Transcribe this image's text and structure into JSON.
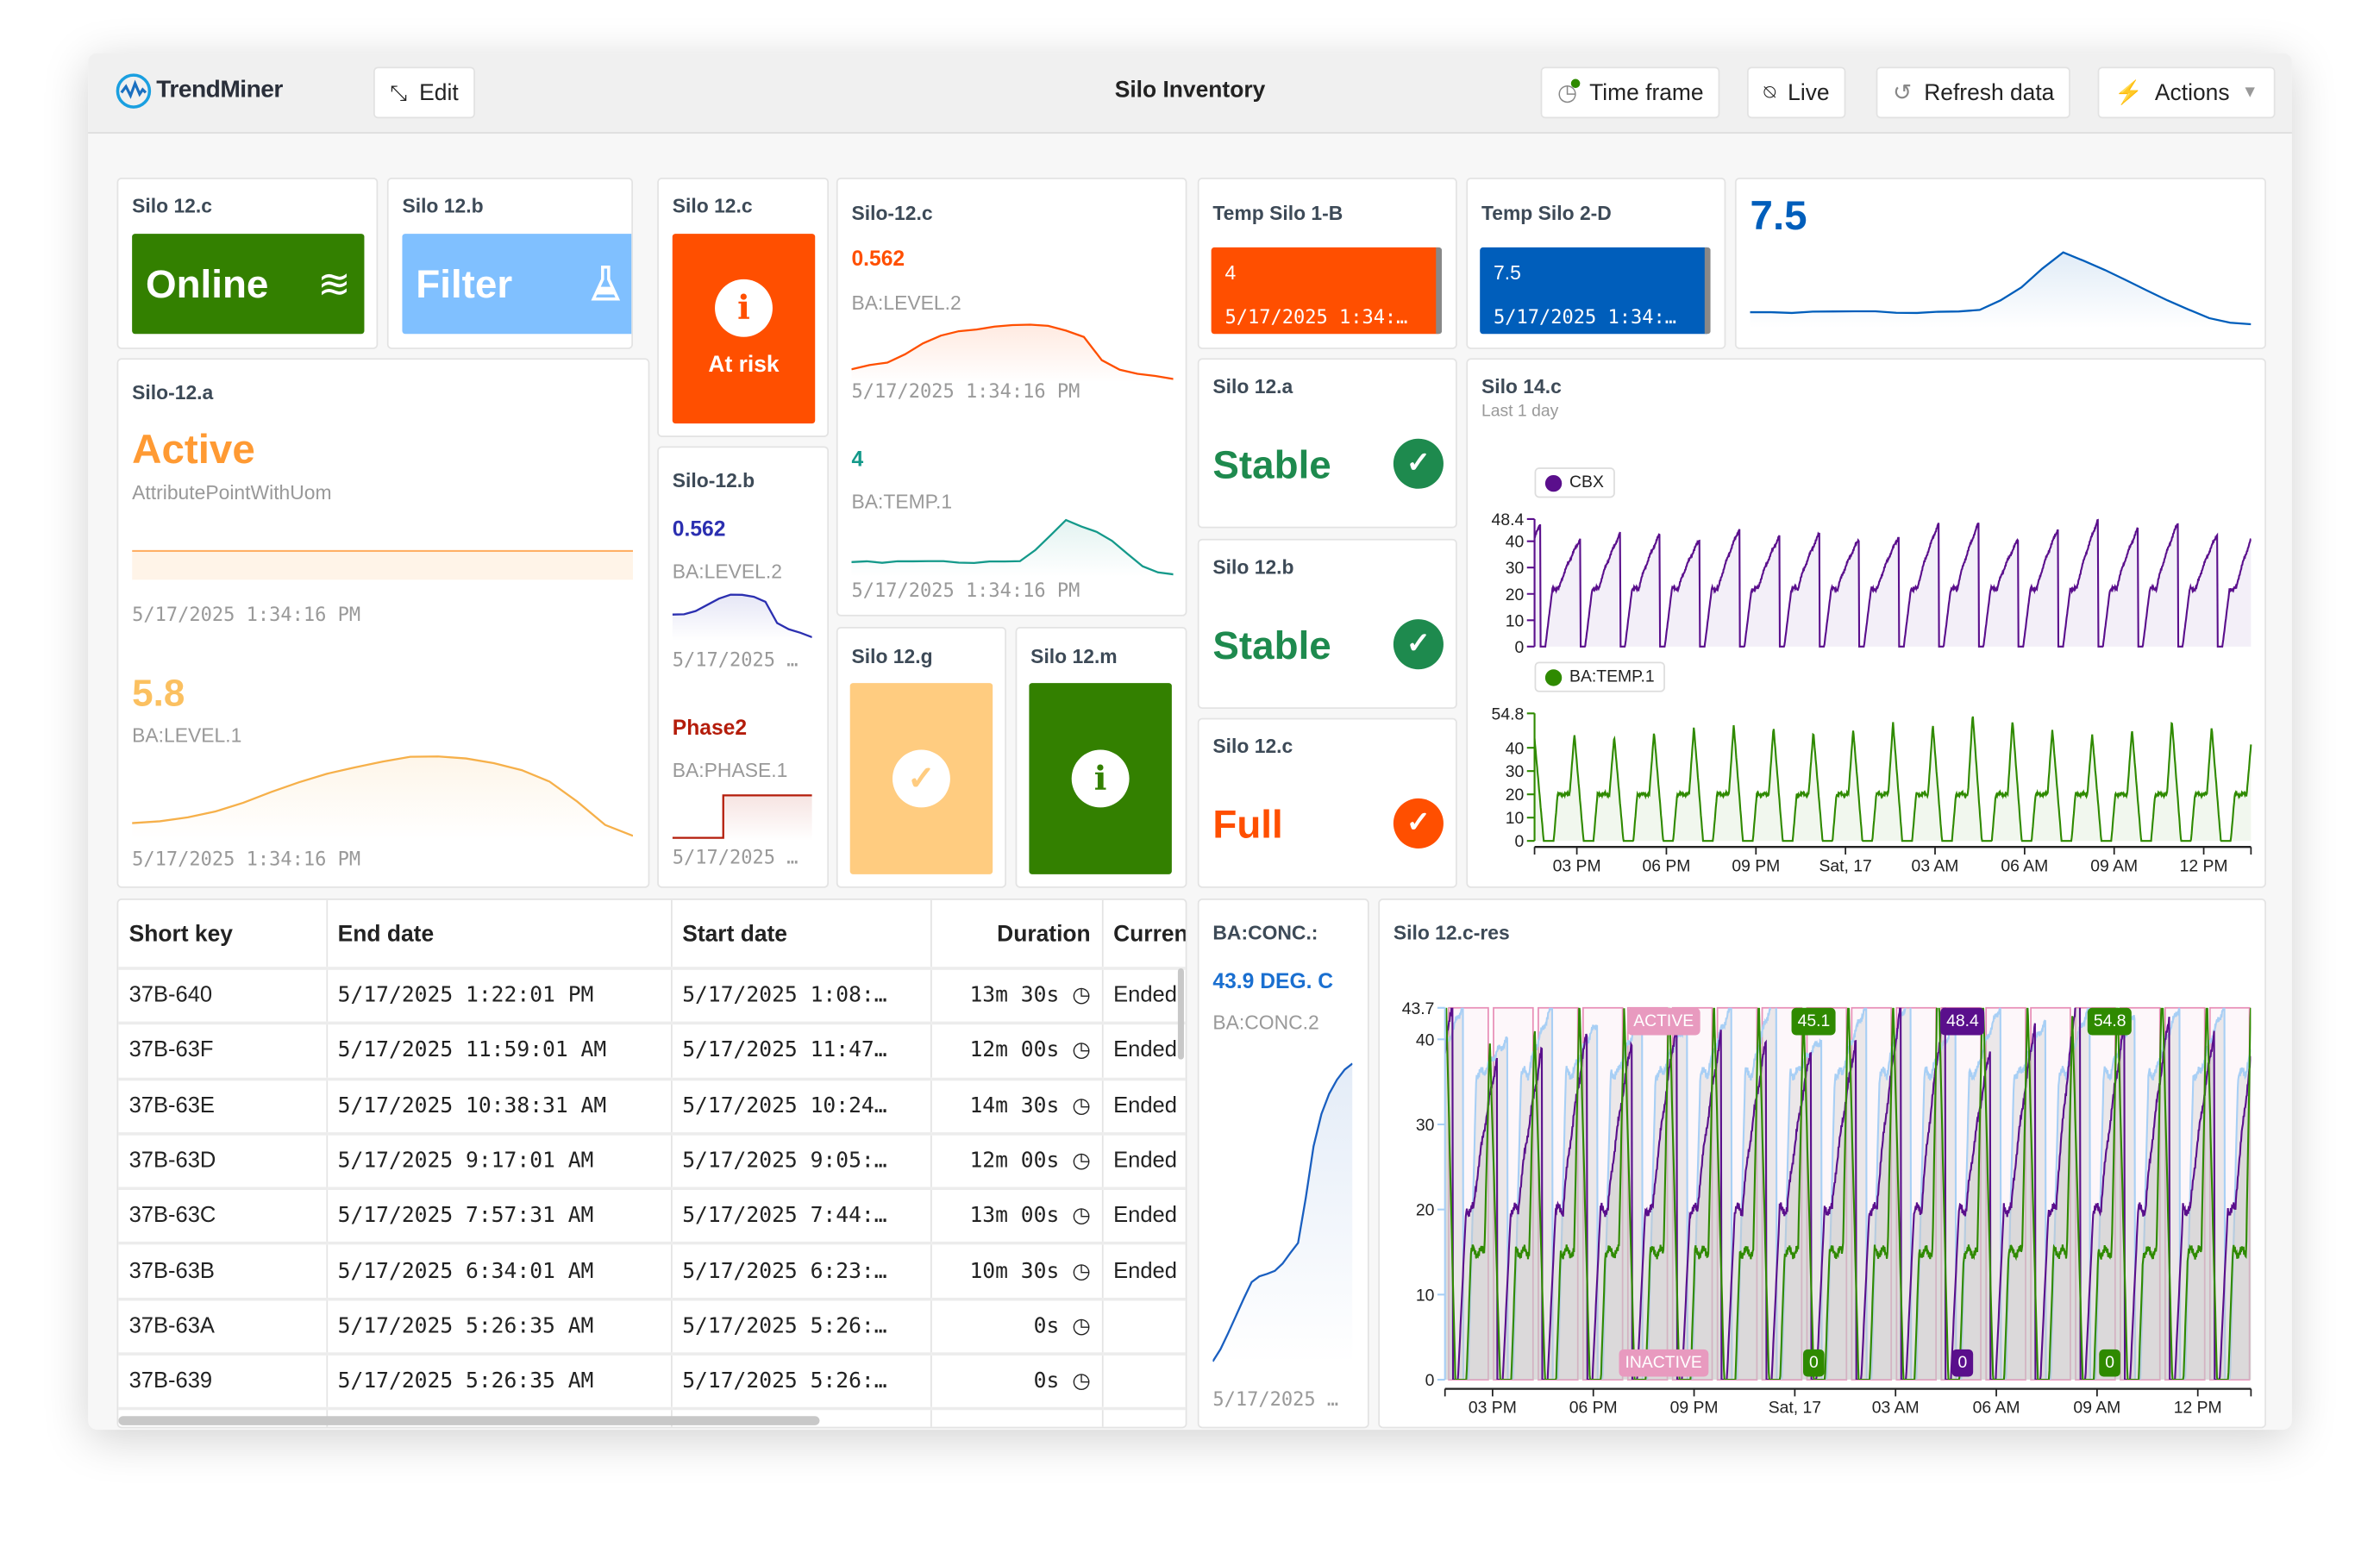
{
  "header": {
    "logo": "TrendMiner",
    "edit": "Edit",
    "title": "Silo Inventory",
    "time_frame": "Time frame",
    "live": "Live",
    "refresh": "Refresh data",
    "actions": "Actions"
  },
  "colors": {
    "green": "#338000",
    "filter_blue": "#80c0ff",
    "orange": "#ff4f00",
    "blue": "#005ebb",
    "stable": "#1e8a4e",
    "active": "#ff9a33",
    "purple": "#5a0f8c",
    "temp_green": "#2f8a00"
  },
  "tiles": {
    "online": {
      "title": "Silo 12.c",
      "label": "Online",
      "icon": "waves-icon"
    },
    "filter": {
      "title": "Silo 12.b",
      "label": "Filter",
      "icon": "flask-icon"
    },
    "atrisk": {
      "title": "Silo 12.c",
      "label": "At risk",
      "icon": "info-icon"
    },
    "level2": {
      "title": "Silo-12.c",
      "value": "0.562",
      "tag": "BA:LEVEL.2",
      "time": "5/17/2025 1:34:16 PM",
      "spark": [
        10,
        11,
        11.5,
        13,
        15,
        16.5,
        17.5,
        18,
        18.6,
        18.8,
        18.7,
        18.4,
        17.6,
        16.5,
        12,
        10,
        9,
        8.5,
        8
      ],
      "value2": "4",
      "tag2": "BA:TEMP.1",
      "time2": "5/17/2025 1:34:16 PM",
      "spark2": [
        5,
        5.2,
        5,
        5.1,
        5,
        5,
        5.1,
        5,
        5,
        5.1,
        5,
        5,
        6.5,
        8.5,
        10.5,
        9.6,
        8.8,
        7.6,
        6,
        4.5,
        3.8,
        3.5
      ]
    },
    "temp1b": {
      "title": "Temp Silo 1-B",
      "value": "4",
      "time": "5/17/2025 1:34:…"
    },
    "temp2d": {
      "title": "Temp Silo 2-D",
      "value": "7.5",
      "time": "5/17/2025 1:34:…"
    },
    "spark75": {
      "value": "7.5",
      "spark": [
        3,
        3.1,
        3,
        3.1,
        3,
        3,
        3.1,
        3,
        3,
        3.1,
        3,
        3.2,
        4.8,
        7,
        10,
        12.5,
        11,
        9.5,
        8,
        6.5,
        5,
        3.5,
        2,
        1.2,
        1
      ]
    },
    "silo12a": {
      "title": "Silo-12.a",
      "state": "Active",
      "attr": "AttributePointWithUom",
      "time": "5/17/2025 1:34:16 PM",
      "value": "5.8",
      "tag": "BA:LEVEL.1",
      "time2": "5/17/2025 1:34:16 PM",
      "spark": [
        2,
        2.2,
        2.5,
        2.9,
        3.5,
        4.3,
        5.1,
        5.8,
        6.3,
        6.7,
        7,
        7,
        6.9,
        6.6,
        6.1,
        5.2,
        3.6,
        1.8,
        1
      ]
    },
    "silo12b": {
      "title": "Silo-12.b",
      "value": "0.562",
      "tag": "BA:LEVEL.2",
      "time": "5/17/2025 …",
      "spark": [
        5,
        5.2,
        5.8,
        6.8,
        7.8,
        8.5,
        8.6,
        8.4,
        7.5,
        3.5,
        2.2,
        1.5,
        0.8
      ],
      "value2": "Phase2",
      "tag2": "BA:PHASE.1",
      "time2": "5/17/2025 …",
      "spark2": [
        1,
        1,
        1,
        1,
        2,
        2,
        2,
        2,
        2,
        2,
        2,
        2
      ]
    },
    "silo12g": {
      "title": "Silo 12.g",
      "icon": "check-icon"
    },
    "silo12m": {
      "title": "Silo 12.m",
      "icon": "info-icon"
    },
    "stable_a": {
      "title": "Silo 12.a",
      "label": "Stable"
    },
    "stable_b": {
      "title": "Silo 12.b",
      "label": "Stable"
    },
    "full_c": {
      "title": "Silo 12.c",
      "label": "Full"
    },
    "conc": {
      "title": "BA:CONC.:",
      "value": "43.9 DEG. C",
      "tag": "BA:CONC.2",
      "time": "5/17/2025 …",
      "spark": [
        0,
        4,
        9,
        14,
        19,
        24,
        26,
        27,
        28,
        30,
        33,
        36,
        50,
        66,
        76,
        82,
        86,
        89,
        91
      ]
    }
  },
  "table": {
    "columns": [
      "Short key",
      "End date",
      "Start date",
      "Duration",
      "Curren"
    ],
    "rows": [
      [
        "37B-640",
        "5/17/2025 1:22:01 PM",
        "5/17/2025 1:08:…",
        "13m 30s",
        "Ended"
      ],
      [
        "37B-63F",
        "5/17/2025 11:59:01 AM",
        "5/17/2025 11:47…",
        "12m 00s",
        "Ended"
      ],
      [
        "37B-63E",
        "5/17/2025 10:38:31 AM",
        "5/17/2025 10:24…",
        "14m 30s",
        "Ended"
      ],
      [
        "37B-63D",
        "5/17/2025 9:17:01 AM",
        "5/17/2025 9:05:…",
        "12m 00s",
        "Ended"
      ],
      [
        "37B-63C",
        "5/17/2025 7:57:31 AM",
        "5/17/2025 7:44:…",
        "13m 00s",
        "Ended"
      ],
      [
        "37B-63B",
        "5/17/2025 6:34:01 AM",
        "5/17/2025 6:23:…",
        "10m 30s",
        "Ended"
      ],
      [
        "37B-63A",
        "5/17/2025 5:26:35 AM",
        "5/17/2025 5:26:…",
        "0s",
        ""
      ],
      [
        "37B-639",
        "5/17/2025 5:26:35 AM",
        "5/17/2025 5:26:…",
        "0s",
        ""
      ]
    ]
  },
  "chart_data": [
    {
      "type": "line",
      "title": "Silo 14.c",
      "subtitle": "Last 1 day",
      "x_range": [
        "2025-05-16 13:35",
        "2025-05-17 13:35"
      ],
      "x_ticks": [
        "03 PM",
        "06 PM",
        "09 PM",
        "Sat, 17",
        "03 AM",
        "06 AM",
        "09 AM",
        "12 PM"
      ],
      "series": [
        {
          "name": "CBX",
          "color": "#5a0f8c",
          "ylim": [
            0,
            48.4
          ],
          "yticks": [
            "48.4",
            "40",
            "30",
            "20",
            "10",
            "0"
          ],
          "cycle_peaks": [
            47,
            41,
            43,
            43,
            41,
            45,
            42,
            43,
            41,
            42,
            47,
            47,
            41,
            45,
            48.4,
            45,
            47,
            43
          ],
          "plateau": 22
        },
        {
          "name": "BA:TEMP.1",
          "color": "#2f8a00",
          "ylim": [
            0,
            54.8
          ],
          "yticks": [
            "54.8",
            "40",
            "30",
            "20",
            "10",
            "0"
          ],
          "cycle_peaks": [
            44,
            46,
            45,
            47,
            49,
            50,
            49,
            47,
            48,
            51,
            50,
            54.8,
            52,
            48,
            46,
            48,
            52,
            49
          ],
          "plateau": 20
        }
      ]
    },
    {
      "type": "line",
      "title": "Silo 12.c-res",
      "x_range": [
        "2025-05-16 13:35",
        "2025-05-17 13:35"
      ],
      "ylim": [
        0,
        43.7
      ],
      "yticks": [
        "43.7",
        "40",
        "30",
        "20",
        "10",
        "0"
      ],
      "x_ticks": [
        "03 PM",
        "06 PM",
        "09 PM",
        "Sat, 17",
        "03 AM",
        "06 AM",
        "09 AM",
        "12 PM"
      ],
      "states": [
        "ACTIVE",
        "INACTIVE"
      ],
      "max_labels": [
        {
          "value": "45.1",
          "color": "#2f8a00"
        },
        {
          "value": "48.4",
          "color": "#5a0f8c"
        },
        {
          "value": "54.8",
          "color": "#2f8a00"
        }
      ],
      "min_labels": [
        {
          "value": "0",
          "color": "#2f8a00"
        },
        {
          "value": "0",
          "color": "#5a0f8c"
        },
        {
          "value": "0",
          "color": "#2f8a00"
        }
      ]
    }
  ]
}
